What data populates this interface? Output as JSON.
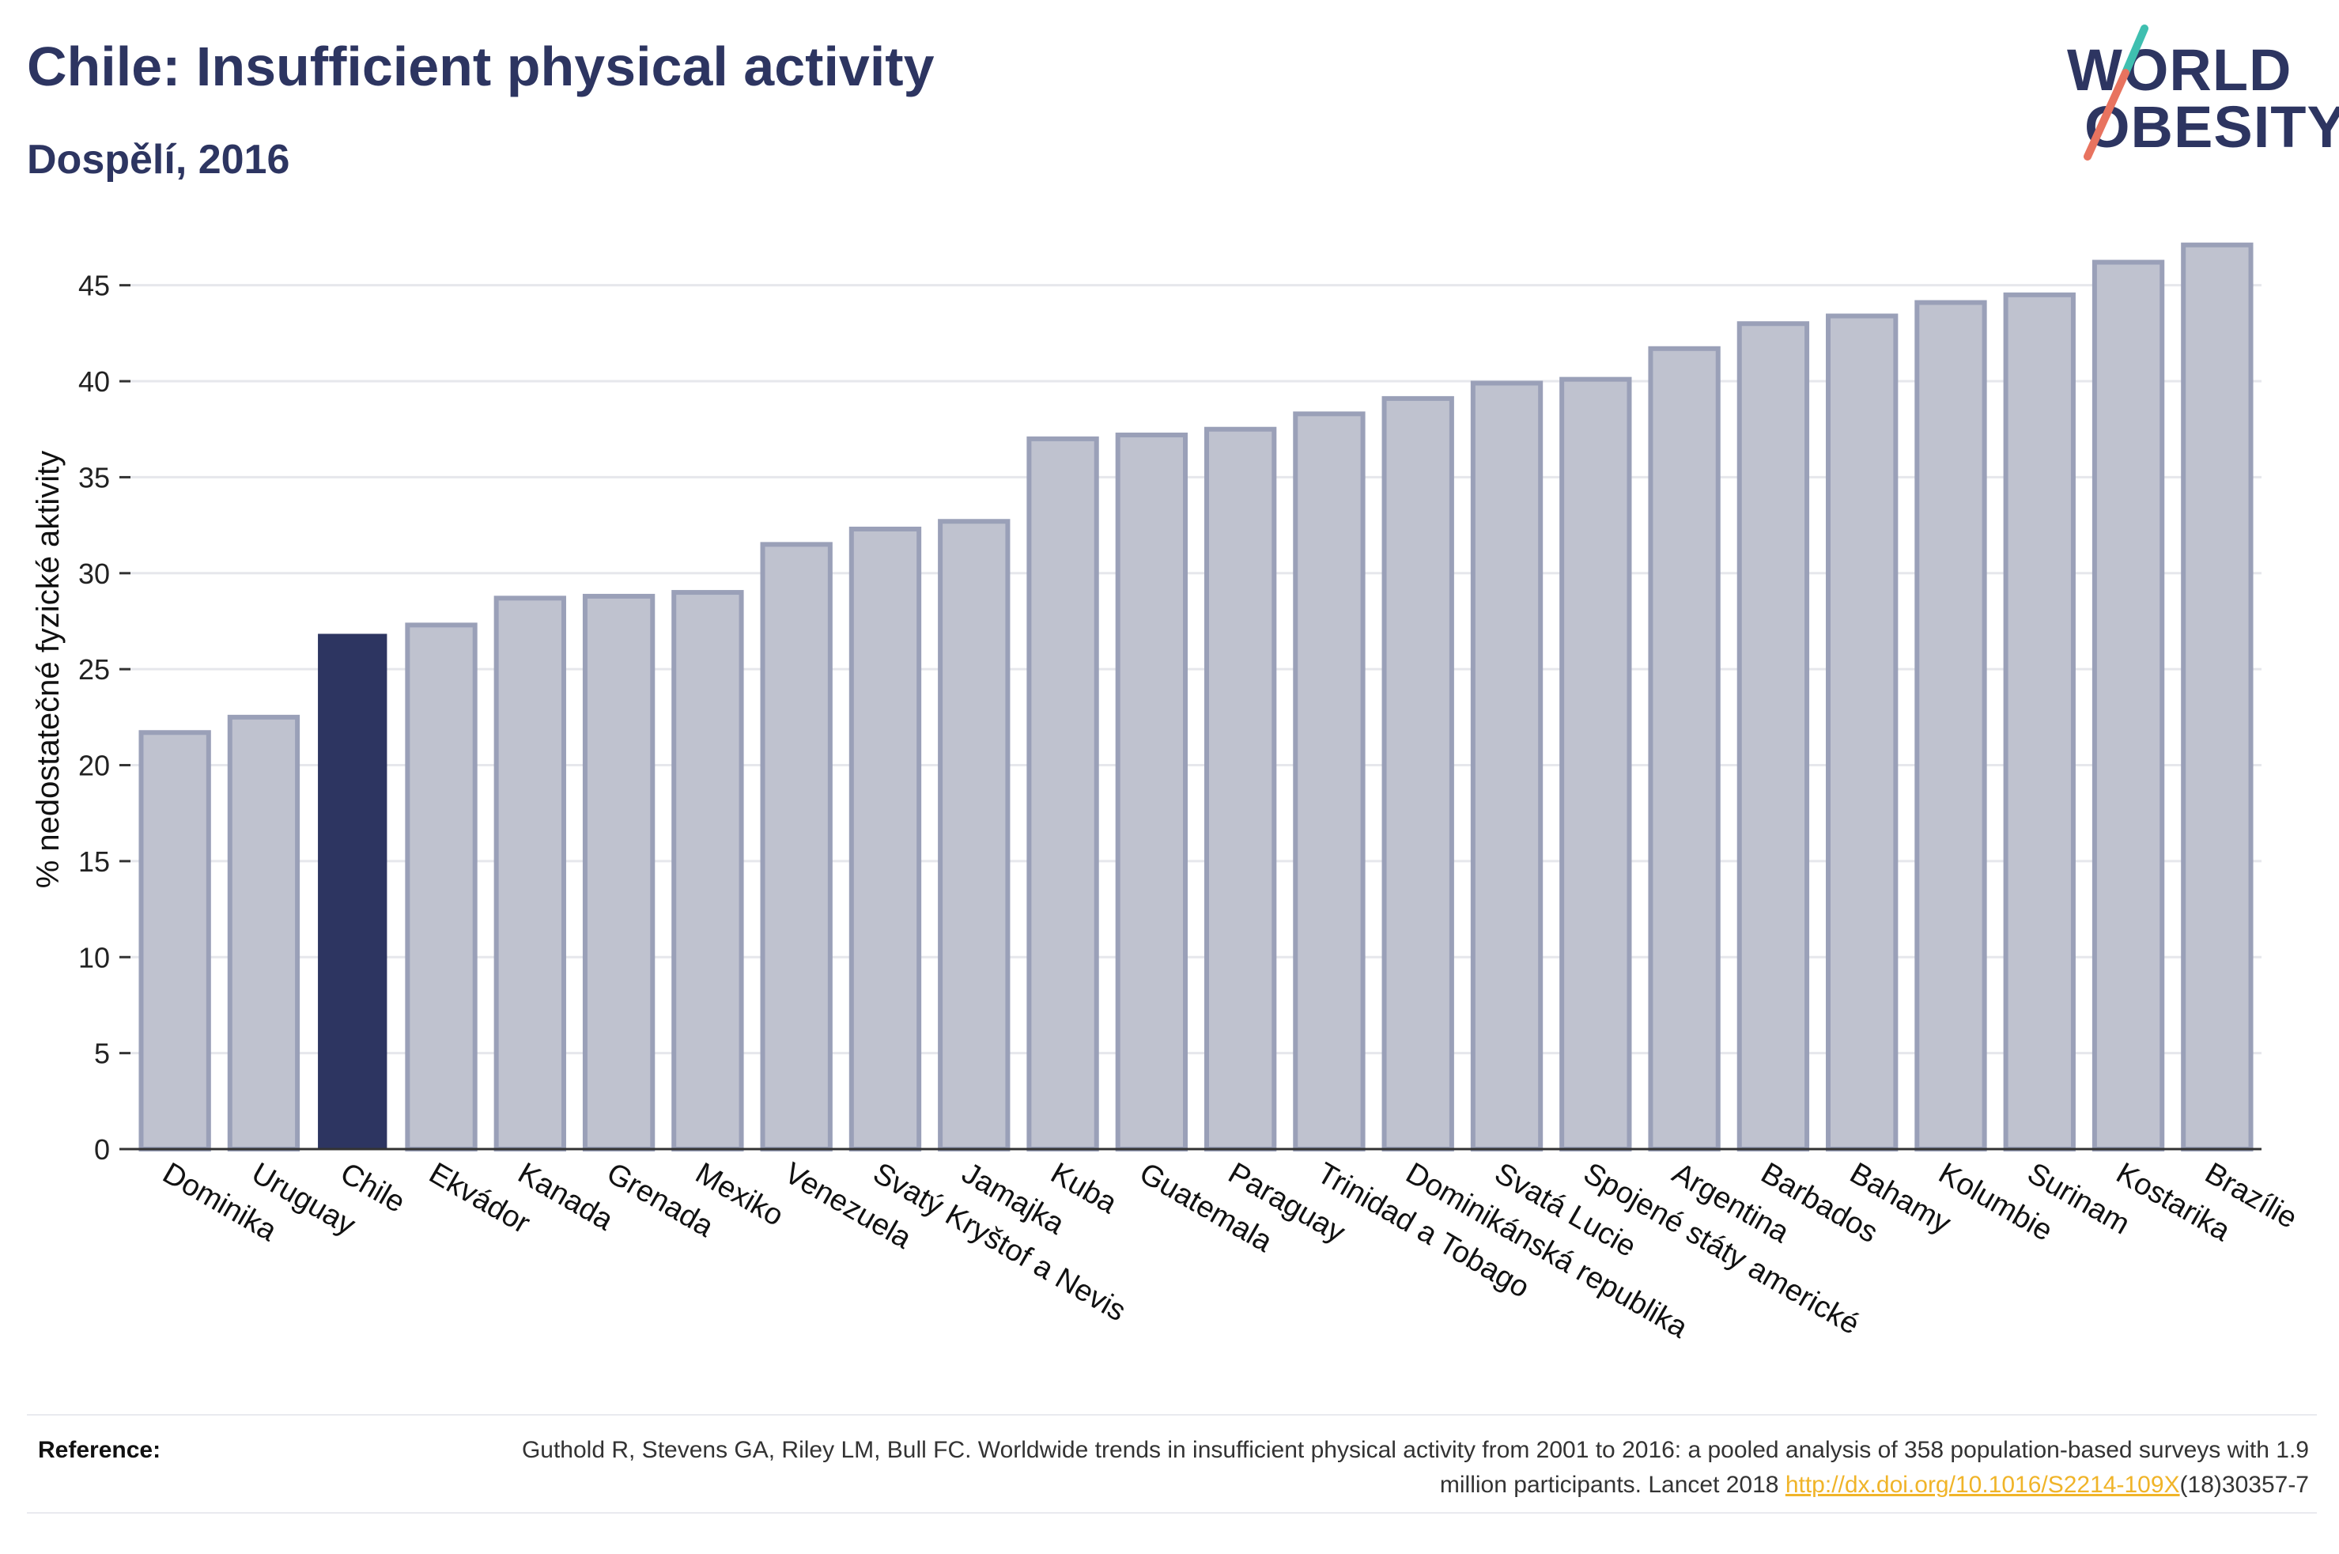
{
  "header": {
    "title": "Chile: Insufficient physical activity",
    "subtitle": "Dospělí, 2016"
  },
  "logo": {
    "line1": "WORLD",
    "line2": "OBESITY"
  },
  "chart_data": {
    "type": "bar",
    "ylabel": "% nedostatečné fyzické aktivity",
    "ylim": [
      0,
      47.5
    ],
    "yticks": [
      0,
      5,
      10,
      15,
      20,
      25,
      30,
      35,
      40,
      45
    ],
    "grid": true,
    "highlight": "Chile",
    "colors": {
      "bar": "#bfc2cf",
      "bar_edge": "#9aa0b8",
      "highlight": "#2d3561",
      "grid": "#e6e7ec",
      "axis": "#333333"
    },
    "categories": [
      "Dominika",
      "Uruguay",
      "Chile",
      "Ekvádor",
      "Kanada",
      "Grenada",
      "Mexiko",
      "Venezuela",
      "Svatý Kryštof a Nevis",
      "Jamajka",
      "Kuba",
      "Guatemala",
      "Paraguay",
      "Trinidad a Tobago",
      "Dominikánská republika",
      "Svatá Lucie",
      "Spojené státy americké",
      "Argentina",
      "Barbados",
      "Bahamy",
      "Kolumbie",
      "Surinam",
      "Kostarika",
      "Brazílie"
    ],
    "values": [
      21.7,
      22.5,
      26.8,
      27.3,
      28.7,
      28.8,
      29.0,
      31.5,
      32.3,
      32.7,
      37.0,
      37.2,
      37.5,
      38.3,
      39.1,
      39.9,
      40.1,
      41.7,
      43.0,
      43.4,
      44.1,
      44.5,
      46.2,
      47.1
    ]
  },
  "reference": {
    "label": "Reference:",
    "text_before": "Guthold R, Stevens GA, Riley LM, Bull FC. Worldwide trends in insufficient physical activity from 2001 to 2016: a pooled analysis of 358 population-based surveys with 1.9 million participants. Lancet 2018 ",
    "link": "http://dx.doi.org/10.1016/S2214-109X",
    "text_after": "(18)30357-7"
  }
}
